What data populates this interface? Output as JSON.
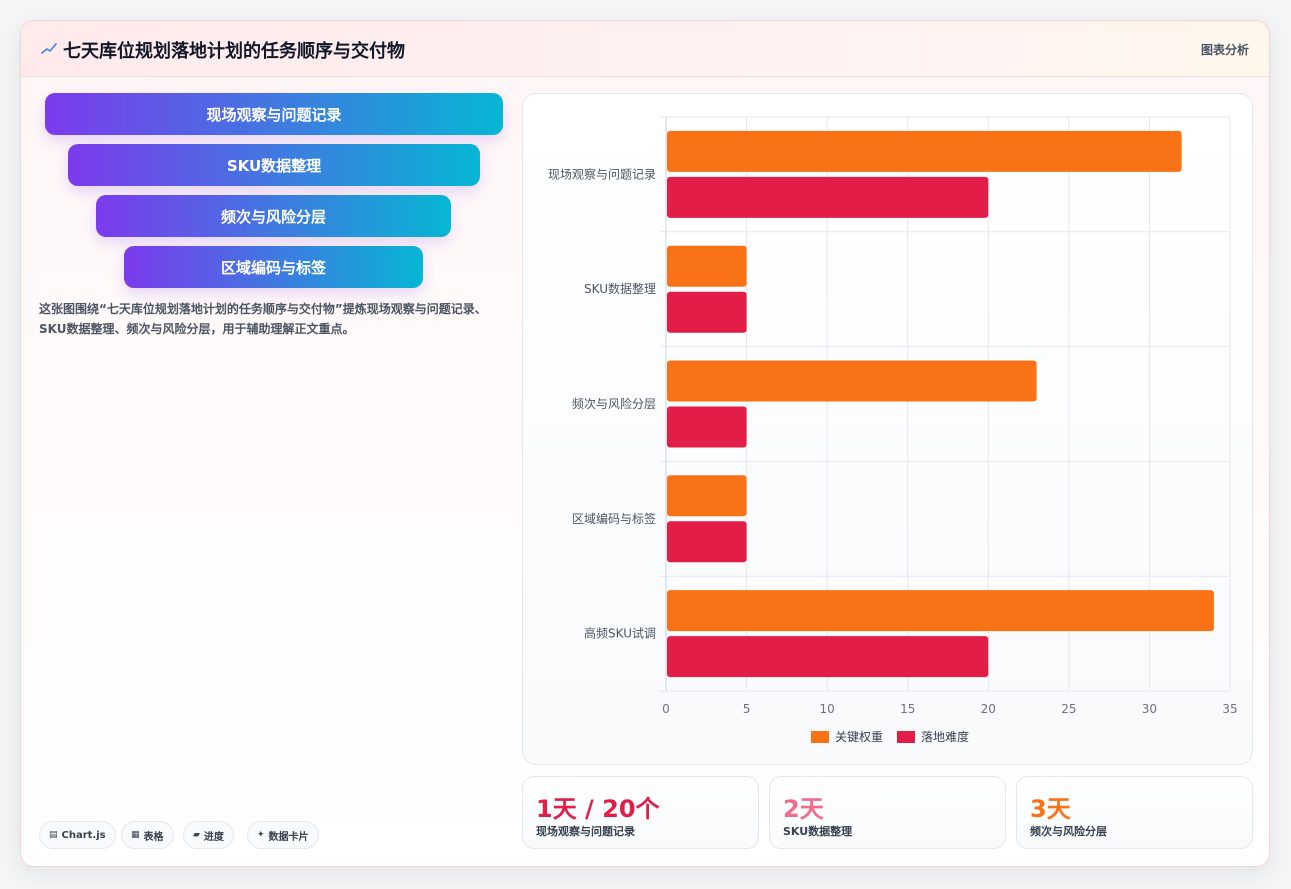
{
  "header": {
    "title": "七天库位规划落地计划的任务顺序与交付物",
    "tag": "图表分析"
  },
  "funnel": [
    {
      "label": "现场观察与问题记录"
    },
    {
      "label": "SKU数据整理"
    },
    {
      "label": "频次与风险分层"
    },
    {
      "label": "区域编码与标签"
    }
  ],
  "description": "这张图围绕“七天库位规划落地计划的任务顺序与交付物”提炼现场观察与问题记录、SKU数据整理、频次与风险分层，用于辅助理解正文重点。",
  "chips": [
    {
      "icon": "▤",
      "label": "Chart.js"
    },
    {
      "icon": "▦",
      "label": "表格"
    },
    {
      "icon": "▰",
      "label": "进度"
    },
    {
      "icon": "✦",
      "label": "数据卡片"
    }
  ],
  "stats": [
    {
      "value": "1天 / 20个",
      "label": "现场观察与问题记录",
      "color": "#e11d48"
    },
    {
      "value": "2天",
      "label": "SKU数据整理",
      "color": "#f06c8c"
    },
    {
      "value": "3天",
      "label": "频次与风险分层",
      "color": "#f97316"
    }
  ],
  "chart_data": {
    "type": "bar",
    "orientation": "horizontal",
    "categories": [
      "现场观察与问题记录",
      "SKU数据整理",
      "频次与风险分层",
      "区域编码与标签",
      "高频SKU试调"
    ],
    "series": [
      {
        "name": "关键权重",
        "color": "#f97316",
        "values": [
          32,
          5,
          23,
          5,
          34
        ]
      },
      {
        "name": "落地难度",
        "color": "#e11d48",
        "values": [
          20,
          5,
          5,
          5,
          20
        ]
      }
    ],
    "xlim": [
      0,
      35
    ],
    "xticks": [
      "0",
      "5",
      "10",
      "15",
      "20",
      "25",
      "30",
      "35"
    ],
    "legend_position": "bottom",
    "grid": true
  }
}
